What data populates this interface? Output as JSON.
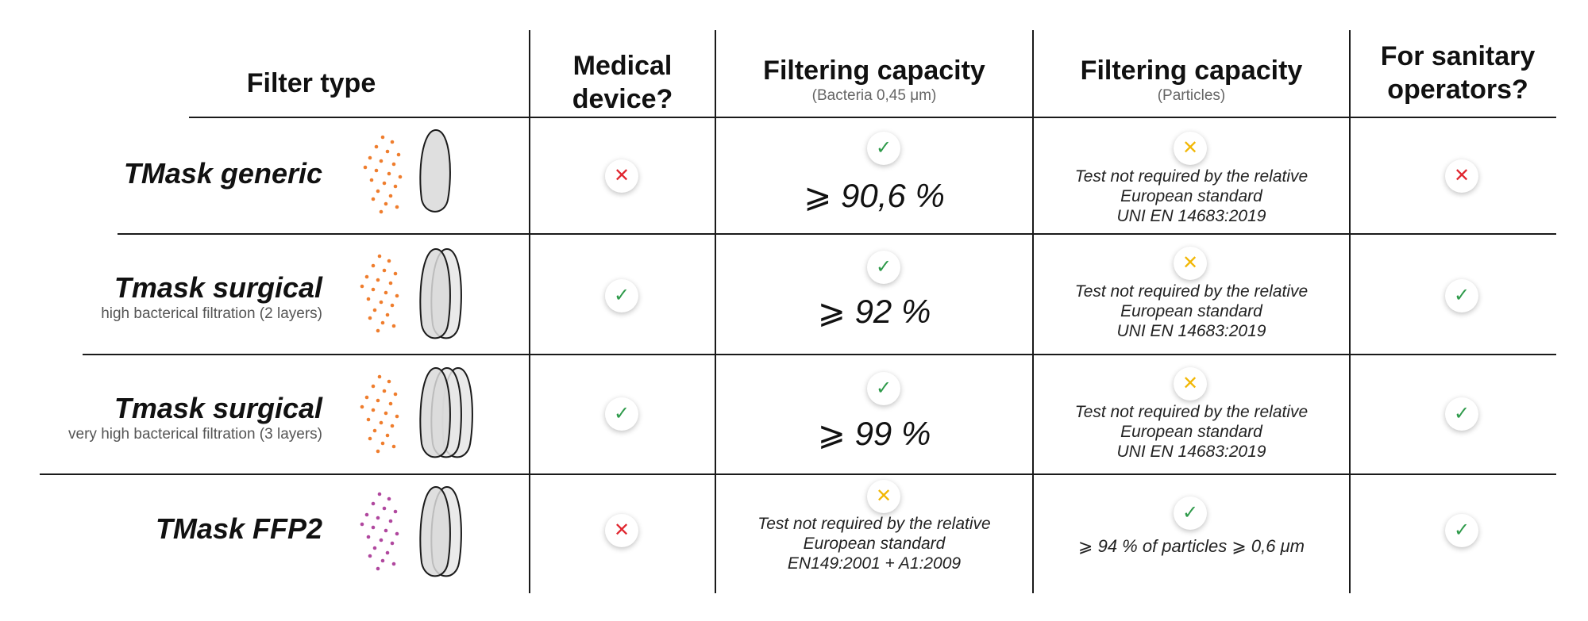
{
  "headers": {
    "filter_type": "Filter type",
    "medical_device": [
      "Medical",
      "device?"
    ],
    "filtering_bacteria": {
      "title": "Filtering capacity",
      "sub": "(Bacteria 0,45 μm)"
    },
    "filtering_particles": {
      "title": "Filtering capacity",
      "sub": "(Particles)"
    },
    "sanitary": [
      "For sanitary",
      "operators?"
    ]
  },
  "rows": [
    {
      "name": "TMask generic",
      "subtitle": "",
      "layers": 1,
      "dot_color": "#ef7d2d",
      "medical_device": "no",
      "bacteria": {
        "status": "yes",
        "value": "⩾ 90,6 %"
      },
      "particles": {
        "status": "warn",
        "note": [
          "Test not required by the relative",
          "European standard",
          "UNI EN 14683:2019"
        ]
      },
      "sanitary": "no"
    },
    {
      "name": "Tmask surgical",
      "subtitle": "high bacterical filtration (2 layers)",
      "layers": 2,
      "dot_color": "#ef7d2d",
      "medical_device": "yes",
      "bacteria": {
        "status": "yes",
        "value": "⩾ 92 %"
      },
      "particles": {
        "status": "warn",
        "note": [
          "Test not required by the relative",
          "European standard",
          "UNI EN 14683:2019"
        ]
      },
      "sanitary": "yes"
    },
    {
      "name": "Tmask surgical",
      "subtitle": "very high bacterical filtration (3 layers)",
      "layers": 3,
      "dot_color": "#ef7d2d",
      "medical_device": "yes",
      "bacteria": {
        "status": "yes",
        "value": "⩾ 99 %"
      },
      "particles": {
        "status": "warn",
        "note": [
          "Test not required by the relative",
          "European standard",
          "UNI EN 14683:2019"
        ]
      },
      "sanitary": "yes"
    },
    {
      "name": "TMask FFP2",
      "subtitle": "",
      "layers": 2,
      "dot_color": "#b0479e",
      "medical_device": "no",
      "bacteria": {
        "status": "warn",
        "note": [
          "Test not required by the relative",
          "European standard",
          "EN149:2001 + A1:2009"
        ]
      },
      "particles": {
        "status": "yes",
        "value": "⩾ 94 % of particles ⩾ 0,6 μm"
      },
      "sanitary": "yes"
    }
  ],
  "status_glyphs": {
    "yes": "✓",
    "no": "✕",
    "warn": "✕"
  },
  "colors": {
    "yes": "#2e9a4a",
    "no": "#e0262f",
    "warn": "#f2b705"
  },
  "icons": {
    "dots": "particle-dots-icon",
    "mask": "mask-layers-icon"
  }
}
